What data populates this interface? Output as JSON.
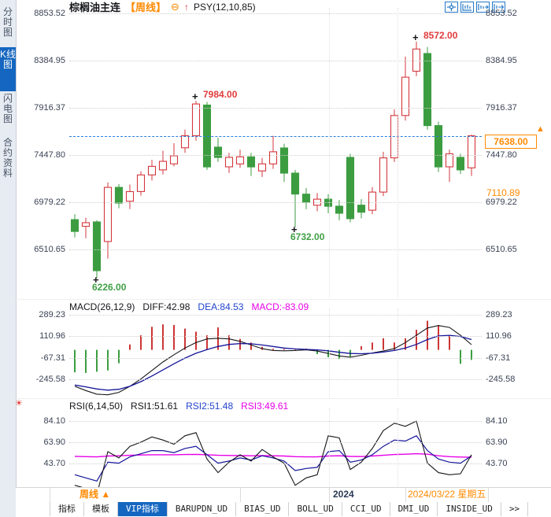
{
  "header": {
    "title": "棕榈油主连",
    "period_tag": "【周线】",
    "collapse_glyph": "⊖",
    "pin_glyph": "↑",
    "indicator": "PSY(12,10,85)"
  },
  "toolbar": {
    "icons": [
      "crosshair",
      "pane-grid",
      "pane-chart",
      "pane-export"
    ]
  },
  "sidebar": {
    "items": [
      {
        "label": "分时图",
        "active": false
      },
      {
        "label": "K线图",
        "active": true
      },
      {
        "label": "闪电图",
        "active": false
      },
      {
        "label": "合约资料",
        "active": false
      }
    ]
  },
  "main_chart": {
    "axis_labels": [
      "8853.52",
      "8384.95",
      "7916.37",
      "7447.80",
      "6979.22",
      "6510.65"
    ],
    "axis_values": [
      8853.52,
      8384.95,
      7916.37,
      7447.8,
      6979.22,
      6510.65
    ],
    "current_price_label": "7638.00",
    "current_price": 7638.0,
    "price_marker": "▲",
    "secondary_price_label": "7110.89",
    "secondary_price": 7110.89,
    "annotations": [
      {
        "text": "8572.00",
        "candle": 31,
        "placement": "above",
        "color": "#e03b3b"
      },
      {
        "text": "7984.00",
        "candle": 11,
        "placement": "above",
        "color": "#e03b3b"
      },
      {
        "text": "6732.00",
        "candle": 20,
        "placement": "below",
        "color": "#3f9e44"
      },
      {
        "text": "6226.00",
        "candle": 2,
        "placement": "below",
        "color": "#3f9e44"
      }
    ]
  },
  "macd_panel": {
    "header_name": "MACD(26,12,9)",
    "diff_label": "DIFF:42.98",
    "dea_label": "DEA:84.53",
    "macd_label": "MACD:-83.09",
    "axis_labels": [
      "289.23",
      "110.96",
      "-67.31",
      "-245.58"
    ],
    "axis_values": [
      289.23,
      110.96,
      -67.31,
      -245.58
    ]
  },
  "rsi_panel": {
    "settings_glyph": "☀",
    "header_name": "RSI(6,14,50)",
    "rsi1_label": "RSI1:51.61",
    "rsi2_label": "RSI2:51.48",
    "rsi3_label": "RSI3:49.61",
    "axis_labels": [
      "84.10",
      "63.90",
      "43.70"
    ],
    "axis_values": [
      84.1,
      63.9,
      43.7
    ]
  },
  "xaxis": {
    "period": "周线",
    "period_arrow": "▲",
    "year": "2024",
    "date": "2024/03/22 星期五"
  },
  "tabs": [
    {
      "label": "指标",
      "active": false
    },
    {
      "label": "模板",
      "active": false
    },
    {
      "label": "VIP指标",
      "active": true
    },
    {
      "label": "BARUPDN_UD",
      "active": false
    },
    {
      "label": "BIAS_UD",
      "active": false
    },
    {
      "label": "BOLL_UD",
      "active": false
    },
    {
      "label": "CCI_UD",
      "active": false
    },
    {
      "label": "DMI_UD",
      "active": false
    },
    {
      "label": "INSIDE_UD",
      "active": false
    },
    {
      "label": ">>",
      "active": false
    }
  ],
  "colors": {
    "up": "#d5373d",
    "down": "#3c9d40",
    "accent_orange": "#ff8a00",
    "selected_blue": "#1566c0",
    "dea_blue": "#15159b",
    "magenta": "#e800e8",
    "dashed_line_blue": "#2b7de0",
    "diff_black": "#15161a"
  },
  "chart_data": {
    "type": "candlestick_with_indicators",
    "x_unit": "week",
    "visible_bars": 37,
    "price_axis_range": [
      6510.65,
      8853.52
    ],
    "marked_high": 8572.0,
    "marked_low": 6226.0,
    "swing_high": 7984.0,
    "swing_low": 6732.0,
    "last_price": 7638.0,
    "candles": [
      [
        "d",
        6807,
        6690,
        6860,
        6630
      ],
      [
        "u",
        6740,
        6776,
        6826,
        6622
      ],
      [
        "d",
        6784,
        6300,
        6800,
        6226
      ],
      [
        "u",
        6590,
        7127,
        7175,
        6420
      ],
      [
        "d",
        7127,
        6971,
        7160,
        6920
      ],
      [
        "u",
        6990,
        7085,
        7155,
        6912
      ],
      [
        "u",
        7085,
        7250,
        7287,
        7046
      ],
      [
        "u",
        7250,
        7335,
        7400,
        7195
      ],
      [
        "u",
        7300,
        7385,
        7490,
        7255
      ],
      [
        "u",
        7360,
        7440,
        7565,
        7335
      ],
      [
        "u",
        7520,
        7640,
        7700,
        7470
      ],
      [
        "u",
        7640,
        7955,
        7984,
        7590
      ],
      [
        "d",
        7944,
        7330,
        7975,
        7300
      ],
      [
        "d",
        7526,
        7424,
        7620,
        7380
      ],
      [
        "u",
        7330,
        7424,
        7470,
        7270
      ],
      [
        "u",
        7360,
        7430,
        7500,
        7320
      ],
      [
        "d",
        7430,
        7330,
        7470,
        7240
      ],
      [
        "u",
        7290,
        7360,
        7420,
        7230
      ],
      [
        "u",
        7360,
        7480,
        7638,
        7310
      ],
      [
        "d",
        7518,
        7268,
        7560,
        7180
      ],
      [
        "d",
        7268,
        7060,
        7300,
        6732
      ],
      [
        "d",
        7060,
        6980,
        7120,
        6910
      ],
      [
        "u",
        6950,
        7010,
        7070,
        6890
      ],
      [
        "d",
        7010,
        6940,
        7060,
        6870
      ],
      [
        "d",
        6940,
        6870,
        7000,
        6800
      ],
      [
        "d",
        7424,
        6816,
        7460,
        6780
      ],
      [
        "d",
        6950,
        6880,
        7010,
        6820
      ],
      [
        "u",
        6900,
        7080,
        7130,
        6860
      ],
      [
        "u",
        7080,
        7420,
        7480,
        7040
      ],
      [
        "u",
        7420,
        7840,
        7900,
        7380
      ],
      [
        "u",
        7840,
        8220,
        8424,
        7790
      ],
      [
        "u",
        8280,
        8500,
        8572,
        8230
      ],
      [
        "d",
        8455,
        7740,
        8520,
        7700
      ],
      [
        "d",
        7740,
        7330,
        7780,
        7280
      ],
      [
        "u",
        7330,
        7460,
        7500,
        7180
      ],
      [
        "d",
        7424,
        7300,
        7460,
        7260
      ],
      [
        "u",
        7320,
        7638,
        7650,
        7240
      ]
    ],
    "macd": {
      "params": [
        26,
        12,
        9
      ],
      "diff": 42.98,
      "dea": 84.53,
      "macd": -83.09,
      "hist": [
        -185,
        -190,
        -180,
        -170,
        -110,
        45,
        120,
        190,
        210,
        205,
        175,
        150,
        120,
        185,
        120,
        90,
        60,
        25,
        10,
        8,
        6,
        10,
        -35,
        -60,
        -75,
        -55,
        30,
        60,
        95,
        60,
        95,
        165,
        240,
        205,
        117,
        -115,
        -83
      ],
      "diff_series": [
        -300,
        -335,
        -365,
        -370,
        -350,
        -300,
        -240,
        -170,
        -100,
        -40,
        15,
        60,
        90,
        95,
        90,
        70,
        40,
        10,
        -5,
        -8,
        -5,
        0,
        -10,
        -30,
        -50,
        -60,
        -45,
        -25,
        -10,
        10,
        60,
        120,
        180,
        200,
        185,
        120,
        43
      ],
      "dea_series": [
        -290,
        -305,
        -322,
        -332,
        -325,
        -300,
        -262,
        -215,
        -165,
        -115,
        -68,
        -28,
        2,
        28,
        45,
        52,
        50,
        40,
        28,
        15,
        8,
        4,
        0,
        -8,
        -20,
        -30,
        -32,
        -28,
        -18,
        -5,
        15,
        45,
        85,
        115,
        120,
        110,
        85
      ]
    },
    "rsi": {
      "params": [
        6,
        14,
        50
      ],
      "rsi1": 51.61,
      "rsi2": 51.48,
      "rsi3": 49.61,
      "rsi1_series": [
        23,
        20,
        14,
        55,
        49,
        60,
        64,
        69,
        66,
        62,
        70,
        73,
        48,
        35,
        45,
        52,
        46,
        57,
        50,
        44,
        23,
        30,
        33,
        70,
        68,
        38,
        45,
        58,
        75,
        82,
        79,
        84,
        44,
        35,
        33,
        34,
        52
      ],
      "rsi2_series": [
        33,
        30,
        27,
        45,
        44,
        50,
        53,
        56,
        56,
        54,
        58,
        60,
        52,
        44,
        46,
        49,
        47,
        51,
        49,
        46,
        37,
        39,
        40,
        55,
        56,
        45,
        47,
        52,
        60,
        66,
        65,
        70,
        56,
        48,
        45,
        44,
        51
      ],
      "rsi3_series": [
        50.5,
        50.2,
        50,
        50.8,
        51,
        51.5,
        51.8,
        52,
        52,
        52,
        52.2,
        52.4,
        52,
        51.5,
        51.3,
        51.2,
        51,
        51.2,
        51,
        50.8,
        50.2,
        50,
        50,
        50.8,
        51,
        50.4,
        50.3,
        50.8,
        51.5,
        52.2,
        52.5,
        53,
        52.5,
        51,
        50.2,
        49.8,
        49.6
      ]
    }
  }
}
